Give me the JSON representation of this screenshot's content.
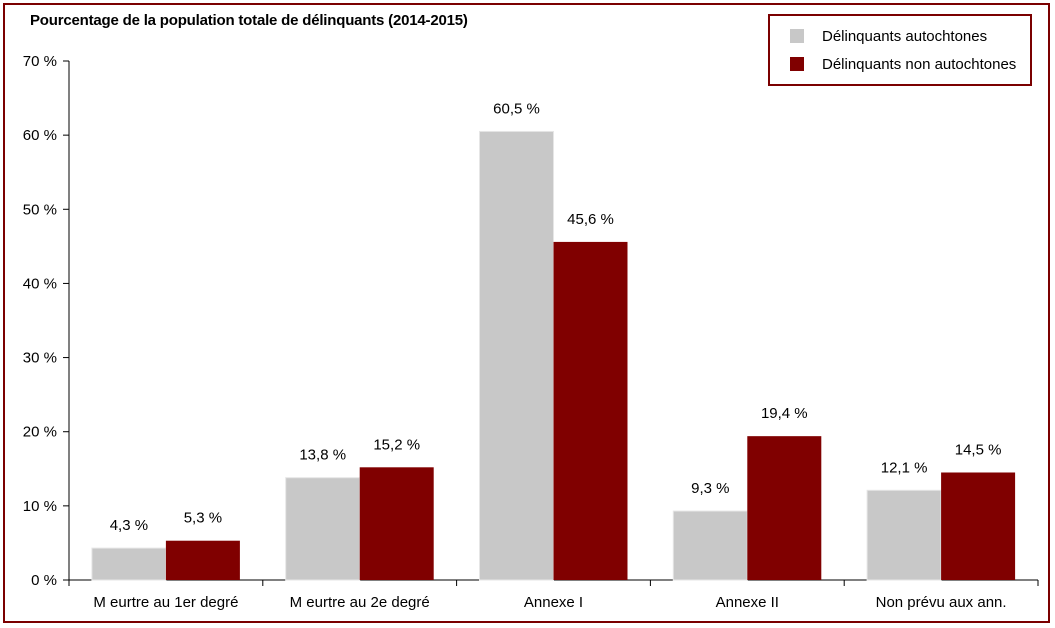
{
  "chart_data": {
    "type": "bar",
    "title": "Pourcentage de la population totale de délinquants (2014-2015)",
    "categories": [
      "M eurtre au 1er degré",
      "M eurtre au 2e degré",
      "Annexe I",
      "Annexe II",
      "Non prévu aux ann."
    ],
    "series": [
      {
        "name": "Délinquants autochtones",
        "values": [
          4.3,
          13.8,
          60.5,
          9.3,
          12.1
        ],
        "labels": [
          "4,3 %",
          "13,8 %",
          "60,5 %",
          "9,3 %",
          "12,1 %"
        ],
        "color": "#c8c8c8"
      },
      {
        "name": "Délinquants non autochtones",
        "values": [
          5.3,
          15.2,
          45.6,
          19.4,
          14.5
        ],
        "labels": [
          "5,3 %",
          "15,2 %",
          "45,6 %",
          "19,4 %",
          "14,5 %"
        ],
        "color": "#800000"
      }
    ],
    "ylim": [
      0,
      70
    ],
    "yticks": [
      0,
      10,
      20,
      30,
      40,
      50,
      60,
      70
    ],
    "ytick_labels": [
      "0 %",
      "10 %",
      "20 %",
      "30 %",
      "40 %",
      "50 %",
      "60 %",
      "70 %"
    ],
    "xlabel": "",
    "ylabel": "",
    "grid": false,
    "legend_position": "top-right"
  },
  "colors": {
    "frame": "#7b0000",
    "autochtones": "#c8c8c8",
    "non_autochtones": "#800000"
  }
}
